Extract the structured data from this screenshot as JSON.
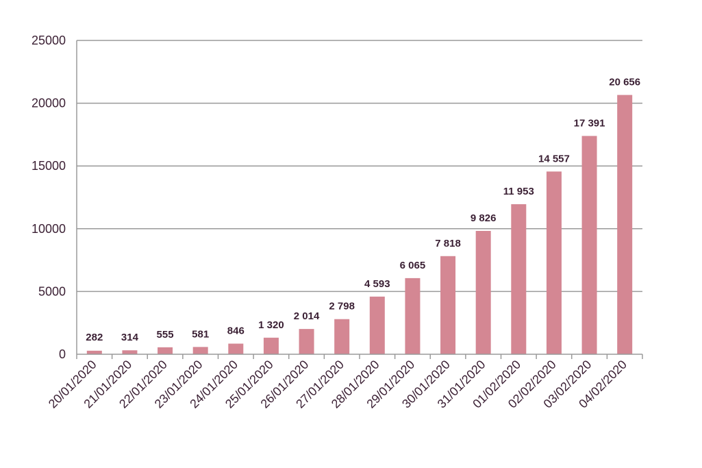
{
  "chart_data": {
    "type": "bar",
    "categories": [
      "20/01/2020",
      "21/01/2020",
      "22/01/2020",
      "23/01/2020",
      "24/01/2020",
      "25/01/2020",
      "26/01/2020",
      "27/01/2020",
      "28/01/2020",
      "29/01/2020",
      "30/01/2020",
      "31/01/2020",
      "01/02/2020",
      "02/02/2020",
      "03/02/2020",
      "04/02/2020"
    ],
    "values": [
      282,
      314,
      555,
      581,
      846,
      1320,
      2014,
      2798,
      4593,
      6065,
      7818,
      9826,
      11953,
      14557,
      17391,
      20656
    ],
    "value_labels": [
      "282",
      "314",
      "555",
      "581",
      "846",
      "1 320",
      "2 014",
      "2 798",
      "4 593",
      "6 065",
      "7 818",
      "9 826",
      "11 953",
      "14 557",
      "17 391",
      "20 656"
    ],
    "ylim": [
      0,
      25000
    ],
    "yticks": [
      0,
      5000,
      10000,
      15000,
      20000,
      25000
    ],
    "ytick_labels": [
      "0",
      "5000",
      "10000",
      "15000",
      "20000",
      "25000"
    ],
    "grid": "horizontal",
    "legend": "none",
    "colors": {
      "bar": "#d48793",
      "grid": "#9a9a9a",
      "text": "#3a1f33"
    }
  }
}
